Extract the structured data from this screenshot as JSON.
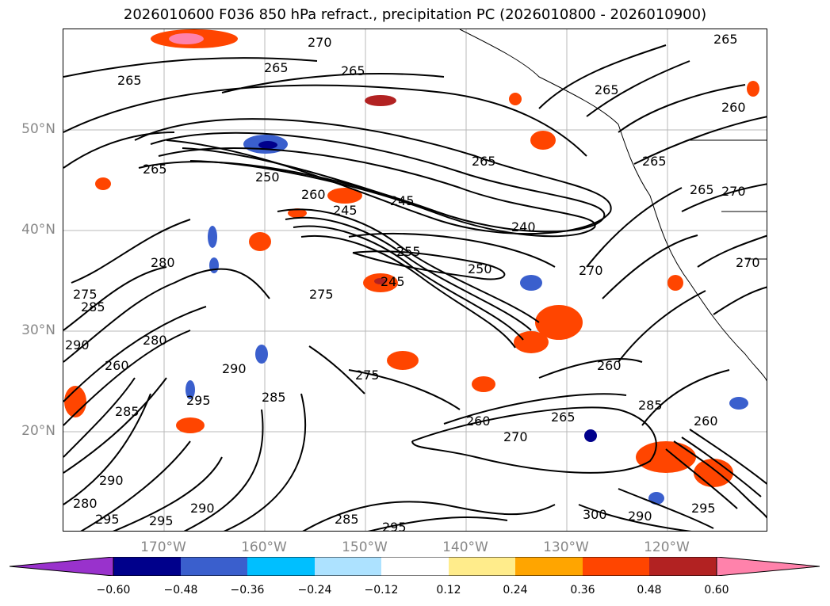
{
  "title": "2026010600 F036 850 hPa refract., precipitation PC (2026010800 - 2026010900)",
  "lat_labels": [
    "50°N",
    "40°N",
    "30°N",
    "20°N"
  ],
  "lon_labels": [
    "170°W",
    "160°W",
    "150°W",
    "140°W",
    "130°W",
    "120°W"
  ],
  "contour_labels": [
    "270",
    "265",
    "265",
    "265",
    "265",
    "260",
    "265",
    "265",
    "265",
    "250",
    "260",
    "245",
    "245",
    "240",
    "265",
    "255",
    "250",
    "270",
    "245",
    "265",
    "280",
    "275",
    "285",
    "290",
    "280",
    "275",
    "290",
    "295",
    "260",
    "285",
    "260",
    "265",
    "275",
    "260",
    "285",
    "270",
    "260",
    "285",
    "290",
    "290",
    "295",
    "280",
    "295",
    "285",
    "295",
    "300",
    "290",
    "295",
    "270",
    "270"
  ],
  "colorbar": {
    "tick_labels": [
      "−0.60",
      "−0.48",
      "−0.36",
      "−0.24",
      "−0.12",
      "0.12",
      "0.24",
      "0.36",
      "0.48",
      "0.60"
    ],
    "colors": [
      "#9932CC",
      "#00008B",
      "#3A5FCD",
      "#00BFFF",
      "#ADE2FF",
      "#FFFFFF",
      "#FFEC8B",
      "#FFA500",
      "#FF4500",
      "#B22222",
      "#FF82AB"
    ]
  }
}
